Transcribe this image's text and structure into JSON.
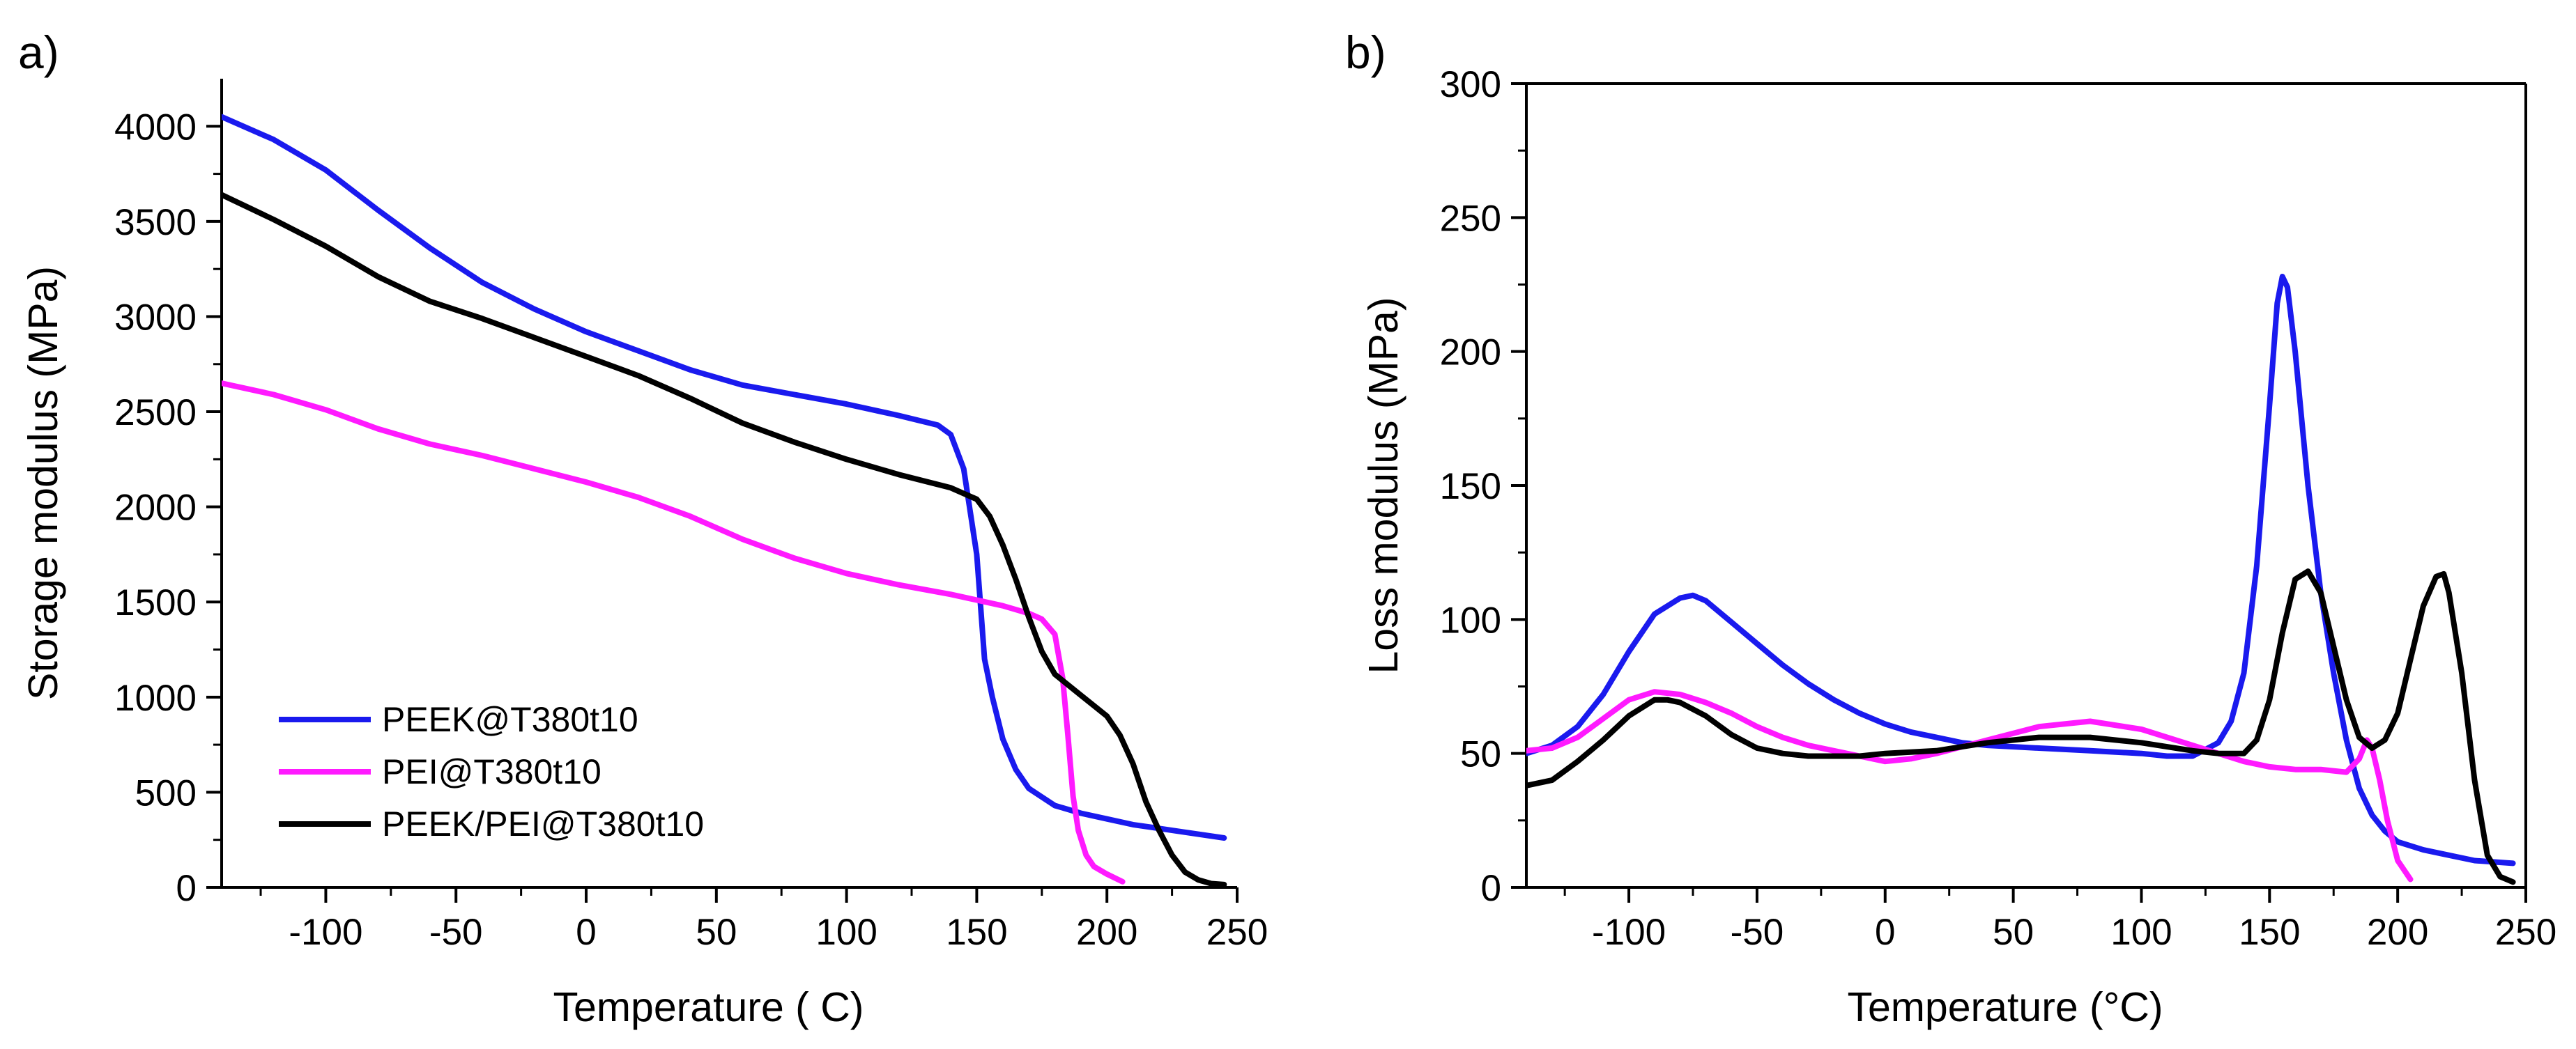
{
  "chart_data": [
    {
      "type": "line",
      "panel_label": "a)",
      "xlabel": "Temperature ( C)",
      "ylabel": "Storage modulus (MPa)",
      "xlim": [
        -140,
        250
      ],
      "ylim": [
        0,
        4250
      ],
      "xticks": [
        -100,
        -50,
        0,
        50,
        100,
        150,
        200,
        250
      ],
      "xtick_labels": [
        "-100",
        "-50",
        "0",
        "50",
        "100",
        "150",
        "200",
        "250"
      ],
      "yticks": [
        0,
        500,
        1000,
        1500,
        2000,
        2500,
        3000,
        3500,
        4000
      ],
      "ytick_labels": [
        "0",
        "500",
        "1000",
        "1500",
        "2000",
        "2500",
        "3000",
        "3500",
        "4000"
      ],
      "grid": false,
      "legend_position": "bottom-left",
      "series": [
        {
          "name": "PEEK@T380t10",
          "color": "#1a1aee",
          "x": [
            -140,
            -120,
            -100,
            -80,
            -60,
            -40,
            -20,
            0,
            20,
            40,
            60,
            80,
            100,
            120,
            135,
            140,
            145,
            150,
            153,
            156,
            160,
            165,
            170,
            180,
            190,
            200,
            210,
            220,
            230,
            245
          ],
          "y": [
            4050,
            3930,
            3770,
            3560,
            3360,
            3180,
            3040,
            2920,
            2820,
            2720,
            2640,
            2590,
            2540,
            2480,
            2430,
            2380,
            2200,
            1750,
            1200,
            1000,
            780,
            620,
            520,
            430,
            390,
            360,
            330,
            310,
            290,
            260
          ]
        },
        {
          "name": "PEI@T380t10",
          "color": "#ff1aff",
          "x": [
            -140,
            -120,
            -100,
            -80,
            -60,
            -40,
            -20,
            0,
            20,
            40,
            60,
            80,
            100,
            120,
            140,
            160,
            170,
            175,
            180,
            183,
            185,
            187,
            189,
            192,
            195,
            200,
            206
          ],
          "y": [
            2650,
            2590,
            2510,
            2410,
            2330,
            2270,
            2200,
            2130,
            2050,
            1950,
            1830,
            1730,
            1650,
            1590,
            1540,
            1480,
            1440,
            1410,
            1330,
            1100,
            800,
            480,
            300,
            170,
            110,
            70,
            30
          ]
        },
        {
          "name": "PEEK/PEI@T380t10",
          "color": "#000000",
          "x": [
            -140,
            -120,
            -100,
            -80,
            -60,
            -40,
            -20,
            0,
            20,
            40,
            60,
            80,
            100,
            120,
            140,
            150,
            155,
            160,
            165,
            170,
            175,
            180,
            190,
            200,
            205,
            210,
            215,
            220,
            225,
            230,
            235,
            240,
            245
          ],
          "y": [
            3640,
            3510,
            3370,
            3210,
            3080,
            2990,
            2890,
            2790,
            2690,
            2570,
            2440,
            2340,
            2250,
            2170,
            2100,
            2040,
            1950,
            1800,
            1620,
            1420,
            1240,
            1120,
            1010,
            900,
            800,
            650,
            450,
            300,
            170,
            80,
            40,
            20,
            15
          ]
        }
      ]
    },
    {
      "type": "line",
      "panel_label": "b)",
      "xlabel": "Temperature (°C)",
      "ylabel": "Loss modulus (MPa)",
      "xlim": [
        -140,
        250
      ],
      "ylim": [
        0,
        300
      ],
      "xticks": [
        -100,
        -50,
        0,
        50,
        100,
        150,
        200,
        250
      ],
      "xtick_labels": [
        "-100",
        "-50",
        "0",
        "50",
        "100",
        "150",
        "200",
        "250"
      ],
      "yticks": [
        0,
        50,
        100,
        150,
        200,
        250,
        300
      ],
      "ytick_labels": [
        "0",
        "50",
        "100",
        "150",
        "200",
        "250",
        "300"
      ],
      "grid": false,
      "series": [
        {
          "name": "PEEK@T380t10",
          "color": "#1a1aee",
          "x": [
            -140,
            -130,
            -120,
            -110,
            -100,
            -90,
            -80,
            -75,
            -70,
            -60,
            -50,
            -40,
            -30,
            -20,
            -10,
            0,
            10,
            20,
            30,
            40,
            60,
            80,
            100,
            110,
            120,
            130,
            135,
            140,
            145,
            150,
            153,
            155,
            157,
            160,
            165,
            170,
            175,
            180,
            185,
            190,
            195,
            200,
            210,
            220,
            230,
            245
          ],
          "y": [
            50,
            53,
            60,
            72,
            88,
            102,
            108,
            109,
            107,
            99,
            91,
            83,
            76,
            70,
            65,
            61,
            58,
            56,
            54,
            53,
            52,
            51,
            50,
            49,
            49,
            54,
            62,
            80,
            120,
            180,
            218,
            228,
            224,
            200,
            150,
            110,
            80,
            55,
            37,
            27,
            21,
            17,
            14,
            12,
            10,
            9
          ]
        },
        {
          "name": "PEI@T380t10",
          "color": "#ff1aff",
          "x": [
            -140,
            -130,
            -120,
            -110,
            -100,
            -90,
            -80,
            -70,
            -60,
            -50,
            -40,
            -30,
            -20,
            -10,
            0,
            10,
            20,
            40,
            60,
            80,
            100,
            120,
            140,
            150,
            160,
            170,
            180,
            185,
            188,
            190,
            193,
            196,
            200,
            205
          ],
          "y": [
            51,
            52,
            56,
            63,
            70,
            73,
            72,
            69,
            65,
            60,
            56,
            53,
            51,
            49,
            47,
            48,
            50,
            55,
            60,
            62,
            59,
            53,
            47,
            45,
            44,
            44,
            43,
            48,
            55,
            52,
            40,
            25,
            10,
            3
          ]
        },
        {
          "name": "PEEK/PEI@T380t10",
          "color": "#000000",
          "x": [
            -140,
            -130,
            -120,
            -110,
            -100,
            -90,
            -85,
            -80,
            -70,
            -60,
            -50,
            -40,
            -30,
            -20,
            -10,
            0,
            20,
            40,
            60,
            80,
            100,
            120,
            130,
            140,
            145,
            150,
            155,
            160,
            165,
            170,
            175,
            180,
            185,
            190,
            195,
            200,
            205,
            210,
            215,
            218,
            220,
            225,
            230,
            235,
            240,
            245
          ],
          "y": [
            38,
            40,
            47,
            55,
            64,
            70,
            70,
            69,
            64,
            57,
            52,
            50,
            49,
            49,
            49,
            50,
            51,
            54,
            56,
            56,
            54,
            51,
            50,
            50,
            55,
            70,
            95,
            115,
            118,
            110,
            90,
            70,
            56,
            52,
            55,
            65,
            85,
            105,
            116,
            117,
            110,
            80,
            40,
            12,
            4,
            2
          ]
        }
      ]
    }
  ]
}
